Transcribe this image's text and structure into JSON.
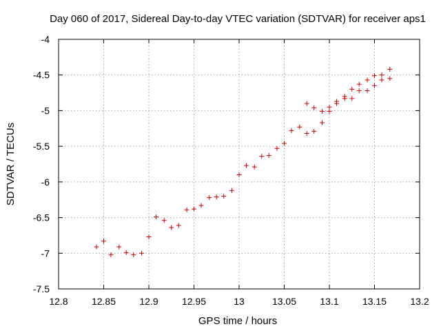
{
  "chart_data": {
    "type": "scatter",
    "title": "Day 060 of 2017, Sidereal Day-to-day VTEC variation (SDTVAR) for receiver aps1",
    "xlabel": "GPS time / hours",
    "ylabel": "SDTVAR / TECUs",
    "xlim": [
      12.8,
      13.2
    ],
    "ylim": [
      -7.5,
      -4
    ],
    "xticks": [
      12.8,
      12.85,
      12.9,
      12.95,
      13,
      13.05,
      13.1,
      13.15,
      13.2
    ],
    "xtick_labels": [
      "12.8",
      "12.85",
      "12.9",
      "12.95",
      "13",
      "13.05",
      "13.1",
      "13.15",
      "13.2"
    ],
    "yticks": [
      -7.5,
      -7,
      -6.5,
      -6,
      -5.5,
      -5,
      -4.5,
      -4
    ],
    "ytick_labels": [
      "-7.5",
      "-7",
      "-6.5",
      "-6",
      "-5.5",
      "-5",
      "-4.5",
      "-4"
    ],
    "grid": true,
    "marker": "+",
    "marker_color": "#cc0000",
    "series": [
      {
        "name": "aps1",
        "x": [
          12.842,
          12.85,
          12.858,
          12.867,
          12.875,
          12.883,
          12.892,
          12.9,
          12.908,
          12.917,
          12.925,
          12.933,
          12.942,
          12.95,
          12.958,
          12.967,
          12.975,
          12.983,
          12.992,
          13.0,
          13.008,
          13.017,
          13.025,
          13.033,
          13.042,
          13.05,
          13.058,
          13.067,
          13.075,
          13.075,
          13.083,
          13.083,
          13.092,
          13.092,
          13.1,
          13.1,
          13.108,
          13.108,
          13.117,
          13.117,
          13.125,
          13.125,
          13.133,
          13.133,
          13.142,
          13.142,
          13.15,
          13.15,
          13.158,
          13.158,
          13.167,
          13.167
        ],
        "y": [
          -6.91,
          -6.83,
          -7.02,
          -6.91,
          -6.99,
          -7.02,
          -7.0,
          -6.77,
          -6.49,
          -6.54,
          -6.64,
          -6.61,
          -6.39,
          -6.38,
          -6.33,
          -6.22,
          -6.21,
          -6.2,
          -6.12,
          -5.9,
          -5.77,
          -5.79,
          -5.64,
          -5.63,
          -5.53,
          -5.46,
          -5.28,
          -5.23,
          -4.9,
          -5.32,
          -4.96,
          -5.29,
          -5.01,
          -5.17,
          -4.95,
          -5.01,
          -4.87,
          -4.9,
          -4.8,
          -4.83,
          -4.7,
          -4.83,
          -4.63,
          -4.72,
          -4.57,
          -4.72,
          -4.51,
          -4.65,
          -4.5,
          -4.57,
          -4.42,
          -4.55
        ]
      }
    ]
  }
}
